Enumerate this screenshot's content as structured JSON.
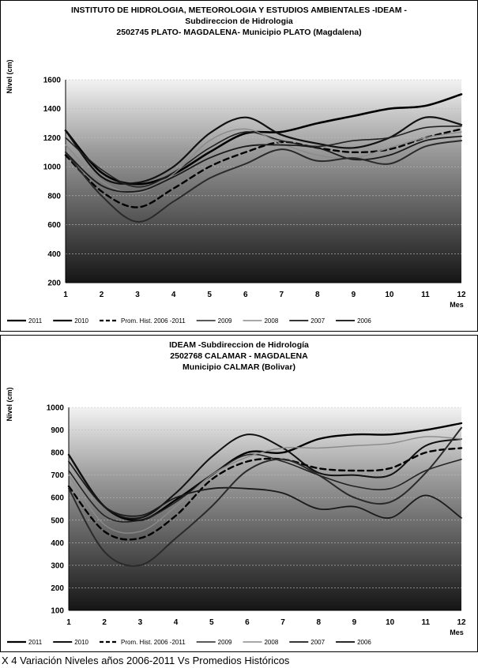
{
  "chart_data": [
    {
      "type": "line",
      "title_lines": [
        "INSTITUTO DE HIDROLOGIA, METEOROLOGIA Y ESTUDIOS AMBIENTALES -IDEAM -",
        "Subdireccion de Hidrologia",
        "2502745 PLATO- MAGDALENA- Municipio PLATO (Magdalena)"
      ],
      "ylabel": "Nivel (cm)",
      "xlabel": "Mes",
      "ylim": [
        200,
        1600
      ],
      "yticks": [
        200,
        400,
        600,
        800,
        1000,
        1200,
        1400,
        1600
      ],
      "x": [
        1,
        2,
        3,
        4,
        5,
        6,
        7,
        8,
        9,
        10,
        11,
        12
      ],
      "series": [
        {
          "name": "2011",
          "values": [
            1250,
            960,
            880,
            950,
            1100,
            1230,
            1240,
            1300,
            1350,
            1400,
            1420,
            1500
          ]
        },
        {
          "name": "2010",
          "values": [
            1250,
            930,
            890,
            1000,
            1230,
            1340,
            1220,
            1160,
            1130,
            1200,
            1340,
            1290
          ]
        },
        {
          "name": "Prom. Hist. 2006 -2011",
          "values": [
            1080,
            830,
            720,
            850,
            1000,
            1100,
            1170,
            1130,
            1100,
            1120,
            1200,
            1260
          ]
        },
        {
          "name": "2009",
          "values": [
            1200,
            980,
            860,
            960,
            1130,
            1240,
            1180,
            1140,
            1180,
            1200,
            1270,
            1280
          ]
        },
        {
          "name": "2008",
          "values": [
            1150,
            900,
            820,
            950,
            1180,
            1260,
            1160,
            1080,
            1060,
            1130,
            1200,
            1240
          ]
        },
        {
          "name": "2007",
          "values": [
            1100,
            870,
            830,
            930,
            1060,
            1140,
            1150,
            1130,
            1050,
            1080,
            1180,
            1210
          ]
        },
        {
          "name": "2006",
          "values": [
            1100,
            800,
            620,
            760,
            920,
            1020,
            1120,
            1040,
            1060,
            1020,
            1140,
            1180
          ]
        }
      ],
      "styles": {
        "2011": {
          "color": "#000000",
          "width": 2.6,
          "dash": ""
        },
        "2010": {
          "color": "#111111",
          "width": 2.2,
          "dash": ""
        },
        "Prom. Hist. 2006 -2011": {
          "color": "#000000",
          "width": 2.4,
          "dash": "7,5"
        },
        "2009": {
          "color": "#222222",
          "width": 1.6,
          "dash": ""
        },
        "2008": {
          "color": "#8a8a8a",
          "width": 1.4,
          "dash": ""
        },
        "2007": {
          "color": "#1a1a1a",
          "width": 1.8,
          "dash": ""
        },
        "2006": {
          "color": "#2a2a2a",
          "width": 2.0,
          "dash": ""
        }
      }
    },
    {
      "type": "line",
      "title_lines": [
        "IDEAM -Subdireccion de Hidrología",
        "2502768 CALAMAR - MAGDALENA",
        "Municipio CALMAR (Bolivar)"
      ],
      "ylabel": "Nivel (cm)",
      "xlabel": "Mes",
      "ylim": [
        100,
        1000
      ],
      "yticks": [
        100,
        200,
        300,
        400,
        500,
        600,
        700,
        800,
        900,
        1000
      ],
      "x": [
        1,
        2,
        3,
        4,
        5,
        6,
        7,
        8,
        9,
        10,
        11,
        12
      ],
      "series": [
        {
          "name": "2011",
          "values": [
            790,
            560,
            500,
            590,
            700,
            800,
            800,
            860,
            880,
            880,
            900,
            930
          ]
        },
        {
          "name": "2010",
          "values": [
            790,
            560,
            510,
            620,
            780,
            880,
            820,
            710,
            700,
            700,
            830,
            860
          ]
        },
        {
          "name": "Prom. Hist. 2006 -2011",
          "values": [
            650,
            450,
            420,
            520,
            680,
            760,
            770,
            730,
            720,
            730,
            800,
            820
          ]
        },
        {
          "name": "2009",
          "values": [
            720,
            520,
            500,
            580,
            700,
            790,
            760,
            700,
            650,
            640,
            720,
            770
          ]
        },
        {
          "name": "2008",
          "values": [
            700,
            480,
            450,
            560,
            700,
            780,
            820,
            820,
            830,
            840,
            870,
            860
          ]
        },
        {
          "name": "2007",
          "values": [
            760,
            560,
            520,
            600,
            640,
            640,
            620,
            550,
            560,
            510,
            610,
            510
          ]
        },
        {
          "name": "2006",
          "values": [
            640,
            360,
            300,
            420,
            560,
            720,
            770,
            700,
            600,
            580,
            710,
            910
          ]
        }
      ],
      "styles": {
        "2011": {
          "color": "#000000",
          "width": 2.4,
          "dash": ""
        },
        "2010": {
          "color": "#111111",
          "width": 2.0,
          "dash": ""
        },
        "Prom. Hist. 2006 -2011": {
          "color": "#000000",
          "width": 2.4,
          "dash": "7,5"
        },
        "2009": {
          "color": "#222222",
          "width": 1.6,
          "dash": ""
        },
        "2008": {
          "color": "#8a8a8a",
          "width": 1.4,
          "dash": ""
        },
        "2007": {
          "color": "#1a1a1a",
          "width": 1.8,
          "dash": ""
        },
        "2006": {
          "color": "#2a2a2a",
          "width": 2.0,
          "dash": ""
        }
      }
    }
  ],
  "caption": "X 4 Variación Niveles años 2006-2011 Vs Promedios Históricos",
  "colors": {
    "plot_top": "#f2f2f2",
    "plot_bottom": "#151515"
  }
}
